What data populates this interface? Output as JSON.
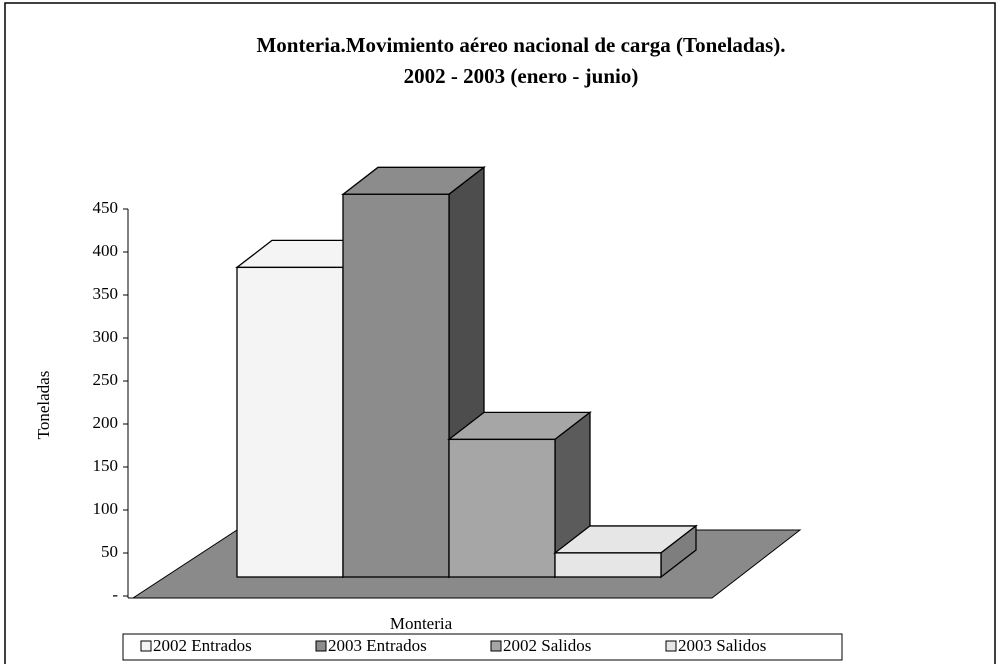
{
  "chart_data": {
    "type": "bar3d",
    "title": [
      "Monteria.Movimiento aéreo nacional de carga (Toneladas).",
      "2002 - 2003 (enero - junio)"
    ],
    "y_label": "Toneladas",
    "categories": [
      "Monteria"
    ],
    "series": [
      {
        "name": "2002 Entrados",
        "color": "#f4f4f4",
        "values": [
          360
        ]
      },
      {
        "name": "2003 Entrados",
        "color": "#8c8c8c",
        "values": [
          445
        ]
      },
      {
        "name": "2002 Salidos",
        "color": "#a6a6a6",
        "values": [
          160
        ]
      },
      {
        "name": "2003 Salidos",
        "color": "#e6e6e6",
        "values": [
          28
        ]
      }
    ],
    "ylim": [
      0,
      450
    ],
    "yticks": [
      {
        "value": 0,
        "label": "-"
      },
      50,
      100,
      150,
      200,
      250,
      300,
      350,
      400,
      450
    ],
    "legend": "bottom"
  }
}
